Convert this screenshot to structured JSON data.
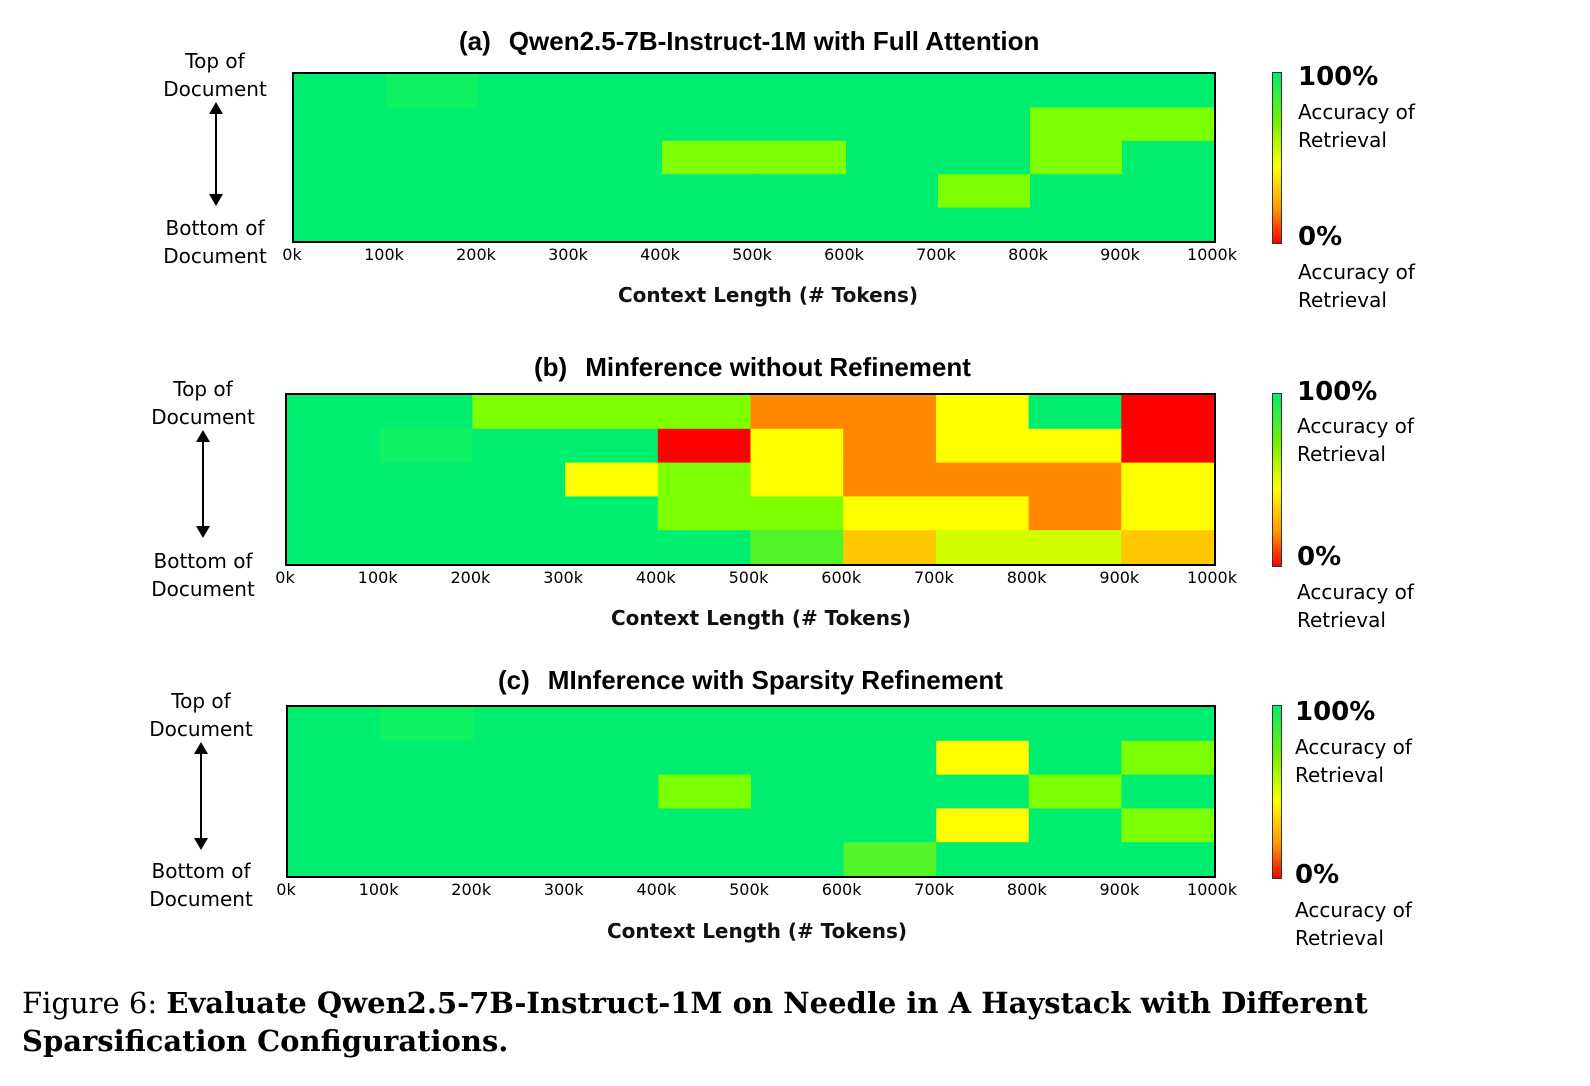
{
  "chart_data": [
    {
      "type": "heatmap",
      "panel_label": "(a)",
      "title": "Qwen2.5-7B-Instruct-1M with Full Attention",
      "xlabel": "Context Length (# Tokens)",
      "ylabel_top": "Top of Document",
      "ylabel_bottom": "Bottom of Document",
      "x_ticks": [
        "0k",
        "100k",
        "200k",
        "300k",
        "400k",
        "500k",
        "600k",
        "700k",
        "800k",
        "900k",
        "1000k"
      ],
      "rows": 5,
      "cols": 10,
      "colorbar": {
        "max_label": "100%",
        "min_label": "0%",
        "caption": "Accuracy of Retrieval"
      },
      "values": [
        [
          100,
          98,
          100,
          100,
          100,
          100,
          100,
          100,
          100,
          100
        ],
        [
          100,
          100,
          100,
          100,
          100,
          100,
          100,
          100,
          80,
          80
        ],
        [
          100,
          100,
          100,
          100,
          80,
          80,
          100,
          100,
          80,
          100
        ],
        [
          100,
          100,
          100,
          100,
          100,
          100,
          100,
          80,
          100,
          100
        ],
        [
          100,
          100,
          100,
          100,
          100,
          100,
          100,
          100,
          100,
          100
        ]
      ]
    },
    {
      "type": "heatmap",
      "panel_label": "(b)",
      "title": "Minference without Refinement",
      "xlabel": "Context Length (# Tokens)",
      "ylabel_top": "Top of Document",
      "ylabel_bottom": "Bottom of Document",
      "x_ticks": [
        "0k",
        "100k",
        "200k",
        "300k",
        "400k",
        "500k",
        "600k",
        "700k",
        "800k",
        "900k",
        "1000k"
      ],
      "rows": 5,
      "cols": 10,
      "colorbar": {
        "max_label": "100%",
        "min_label": "0%",
        "caption": "Accuracy of Retrieval"
      },
      "values": [
        [
          100,
          100,
          80,
          80,
          80,
          30,
          30,
          55,
          100,
          0
        ],
        [
          100,
          98,
          100,
          100,
          0,
          55,
          30,
          55,
          55,
          0
        ],
        [
          100,
          100,
          100,
          55,
          80,
          55,
          30,
          30,
          30,
          55
        ],
        [
          100,
          100,
          100,
          100,
          80,
          80,
          55,
          55,
          30,
          55
        ],
        [
          100,
          100,
          100,
          100,
          100,
          90,
          45,
          70,
          70,
          45
        ]
      ]
    },
    {
      "type": "heatmap",
      "panel_label": "(c)",
      "title": "MInference with Sparsity Refinement",
      "xlabel": "Context Length (# Tokens)",
      "ylabel_top": "Top of Document",
      "ylabel_bottom": "Bottom of Document",
      "x_ticks": [
        "0k",
        "100k",
        "200k",
        "300k",
        "400k",
        "500k",
        "600k",
        "700k",
        "800k",
        "900k",
        "1000k"
      ],
      "rows": 5,
      "cols": 10,
      "colorbar": {
        "max_label": "100%",
        "min_label": "0%",
        "caption": "Accuracy of Retrieval"
      },
      "values": [
        [
          100,
          98,
          100,
          100,
          100,
          100,
          100,
          100,
          100,
          100
        ],
        [
          100,
          100,
          100,
          100,
          100,
          100,
          100,
          55,
          100,
          80
        ],
        [
          100,
          100,
          100,
          100,
          80,
          100,
          100,
          100,
          80,
          100
        ],
        [
          100,
          100,
          100,
          100,
          100,
          100,
          100,
          55,
          100,
          80
        ],
        [
          100,
          100,
          100,
          100,
          100,
          100,
          90,
          100,
          100,
          100
        ]
      ]
    }
  ],
  "caption": {
    "prefix": "Figure 6: ",
    "bold": "Evaluate Qwen2.5-7B-Instruct-1M on Needle in A Haystack with Different Sparsification Configurations."
  }
}
